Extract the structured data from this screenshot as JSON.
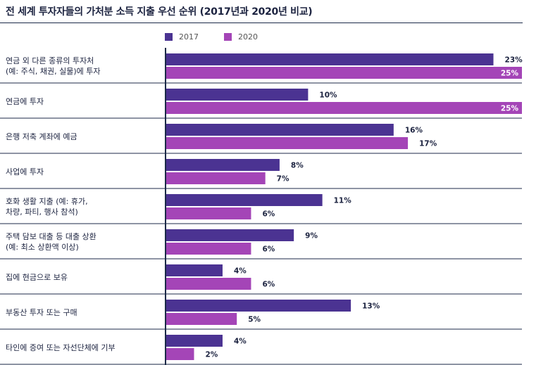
{
  "chart_data": {
    "type": "bar",
    "orientation": "horizontal",
    "title": "전 세계 투자자들의 가처분 소득 지출 우선 순위 (2017년과 2020년 비교)",
    "xlabel": "",
    "ylabel": "",
    "xlim": [
      0,
      25
    ],
    "unit": "%",
    "legend_position": "top",
    "categories": [
      "연금 외 다른 종류의 투자처\n(예: 주식, 채권, 실물)에 투자",
      "연금에 투자",
      "은행 저축 계좌에 예금",
      "사업에 투자",
      "호화 생활 지출 (예: 휴가,\n차량, 파티, 행사 참석)",
      "주택 담보 대출 등 대출 상환\n(예: 최소 상환액 이상)",
      "집에 현금으로 보유",
      "부동산 투자 또는 구매",
      "타인에 증여 또는 자선단체에 기부"
    ],
    "series": [
      {
        "name": "2017",
        "color": "#4b3392",
        "values": [
          23,
          10,
          16,
          8,
          11,
          9,
          4,
          13,
          4
        ]
      },
      {
        "name": "2020",
        "color": "#a445b7",
        "values": [
          25,
          25,
          17,
          7,
          6,
          6,
          6,
          5,
          2
        ]
      }
    ]
  }
}
